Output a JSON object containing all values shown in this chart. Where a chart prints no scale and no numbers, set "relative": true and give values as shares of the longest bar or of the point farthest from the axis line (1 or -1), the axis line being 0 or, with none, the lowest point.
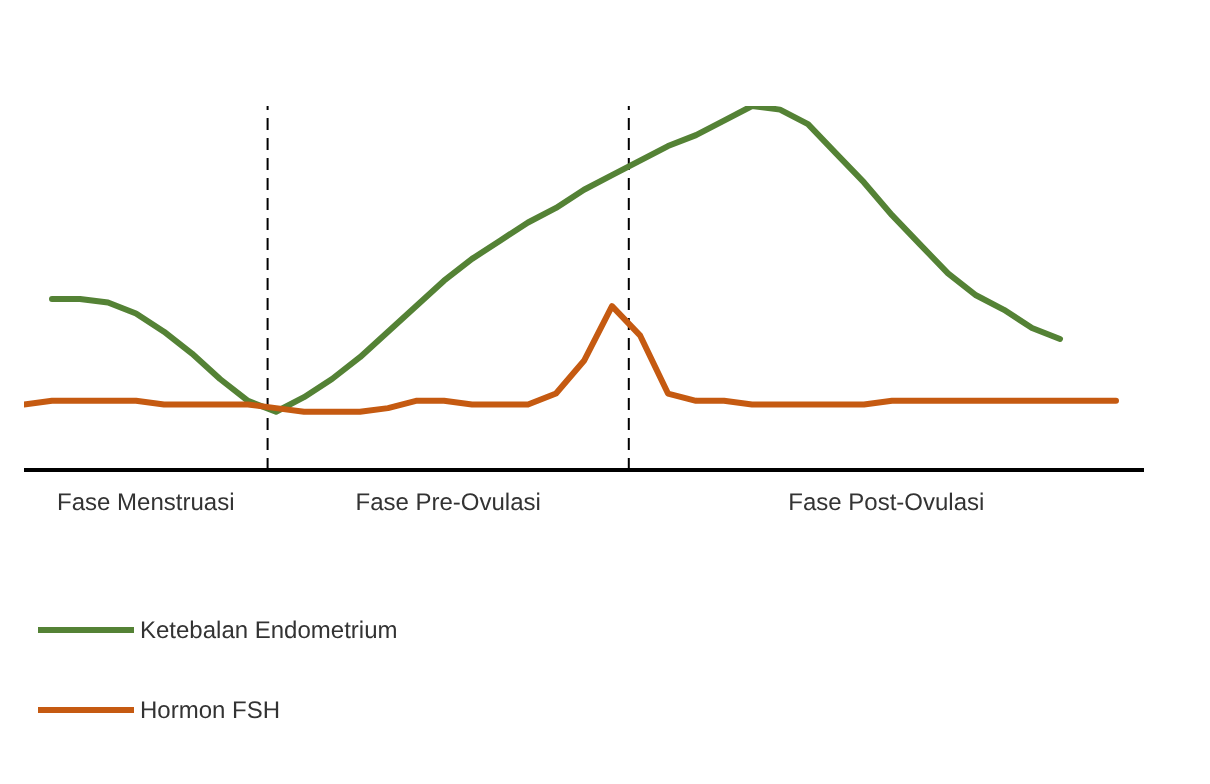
{
  "chart_data": {
    "type": "line",
    "relative": true,
    "legend": "bottom left",
    "marker": "none",
    "line_style": "solid",
    "categories": [
      null,
      null,
      null,
      null,
      null,
      null,
      null,
      null,
      null,
      null,
      null,
      null,
      null,
      null,
      null,
      null,
      null,
      null,
      null,
      null,
      null,
      null,
      null,
      null,
      null,
      null,
      null,
      null,
      null,
      null,
      null,
      null,
      null,
      null,
      null,
      null,
      null,
      null,
      null,
      null,
      null
    ],
    "annotations": [
      "Fase Menstruasi",
      "Fase Pre-Ovulasi",
      "Fase Post-Ovulasi"
    ],
    "series": [
      {
        "name": "Ketebalan Endometrium",
        "color": "#548235",
        "values": [
          null,
          0.47,
          0.47,
          0.46,
          0.43,
          0.38,
          0.32,
          0.25,
          0.19,
          0.16,
          0.2,
          0.25,
          0.31,
          0.38,
          0.45,
          0.52,
          0.58,
          0.63,
          0.68,
          0.72,
          0.77,
          0.81,
          0.85,
          0.89,
          0.92,
          0.96,
          1,
          0.99,
          0.95,
          0.87,
          0.79,
          0.7,
          0.62,
          0.54,
          0.48,
          0.44,
          0.39,
          0.36,
          null,
          null,
          null
        ]
      },
      {
        "name": "Hormon FSH",
        "color": "#c55a11",
        "values": [
          0.18,
          0.19,
          0.19,
          0.19,
          0.19,
          0.18,
          0.18,
          0.18,
          0.18,
          0.17,
          0.16,
          0.16,
          0.16,
          0.17,
          0.19,
          0.19,
          0.18,
          0.18,
          0.18,
          0.21,
          0.3,
          0.45,
          0.37,
          0.21,
          0.19,
          0.19,
          0.18,
          0.18,
          0.18,
          0.18,
          0.18,
          0.19,
          0.19,
          0.19,
          0.19,
          0.19,
          0.19,
          0.19,
          0.19,
          0.19,
          null
        ]
      }
    ]
  }
}
